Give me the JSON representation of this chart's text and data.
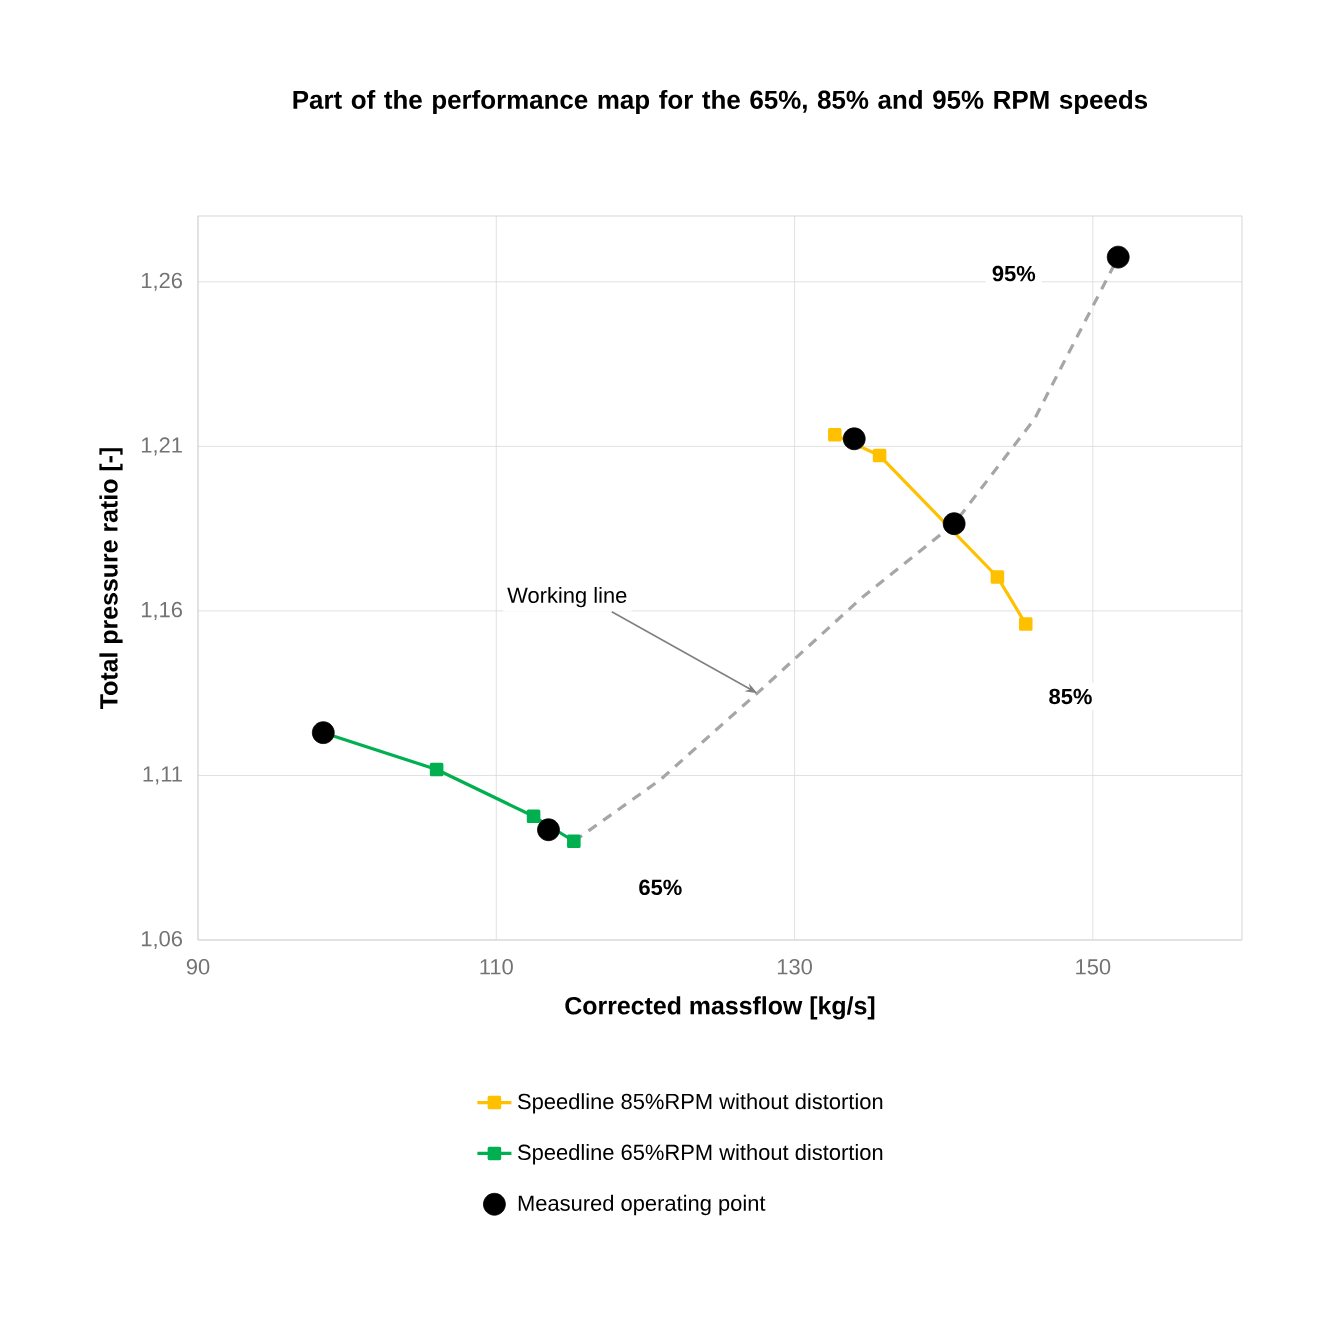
{
  "chart_data": {
    "type": "line",
    "title": "Part of the performance map for the 65%, 85% and 95% RPM speeds",
    "xlabel": "Corrected massflow [kg/s]",
    "ylabel": "Total pressure ratio [-]",
    "xlim": [
      90,
      160
    ],
    "ylim": [
      1.06,
      1.28
    ],
    "xticks": [
      90,
      110,
      130,
      150
    ],
    "yticks": [
      {
        "value": 1.06,
        "label": "1,06"
      },
      {
        "value": 1.11,
        "label": "1,11"
      },
      {
        "value": 1.16,
        "label": "1,16"
      },
      {
        "value": 1.21,
        "label": "1,21"
      },
      {
        "value": 1.26,
        "label": "1,26"
      }
    ],
    "grid": true,
    "legend": "bottom",
    "series": [
      {
        "name": "Speedline 85%RPM without distortion",
        "marker": "square",
        "color": "#ffc000",
        "x": [
          132.7,
          135.7,
          140.7,
          143.6,
          145.5
        ],
        "values": [
          1.2135,
          1.2072,
          null,
          1.1703,
          1.156
        ]
      },
      {
        "name": "Speedline 65%RPM without distortion",
        "marker": "square",
        "color": "#00b050",
        "x": [
          98.4,
          106.0,
          112.5,
          115.2
        ],
        "values": [
          1.123,
          1.1118,
          1.0976,
          1.09
        ]
      },
      {
        "name": "Measured operating point",
        "type": "scatter",
        "marker": "circle",
        "color": "#000000",
        "x": [
          98.4,
          113.5,
          134.0,
          140.7,
          151.7
        ],
        "values": [
          1.123,
          1.0935,
          1.2123,
          1.1865,
          1.2675
        ]
      },
      {
        "marker": "none",
        "line_style": "dashed",
        "color": "#a6a6a6",
        "x": [
          115.2,
          121.0,
          127.5,
          134.4,
          140.7,
          146.1,
          151.7
        ],
        "values": [
          1.09,
          1.1087,
          1.135,
          1.1636,
          1.1865,
          1.2184,
          1.2675
        ]
      }
    ],
    "annotations": [
      {
        "text": "Working line",
        "x": 127.5,
        "y": 1.135
      },
      {
        "text": "65%",
        "x": 121.0,
        "y": 1.076
      },
      {
        "text": "85%",
        "x": 148.5,
        "y": 1.134
      },
      {
        "text": "95%",
        "x": 144.7,
        "y": 1.2625
      }
    ]
  }
}
